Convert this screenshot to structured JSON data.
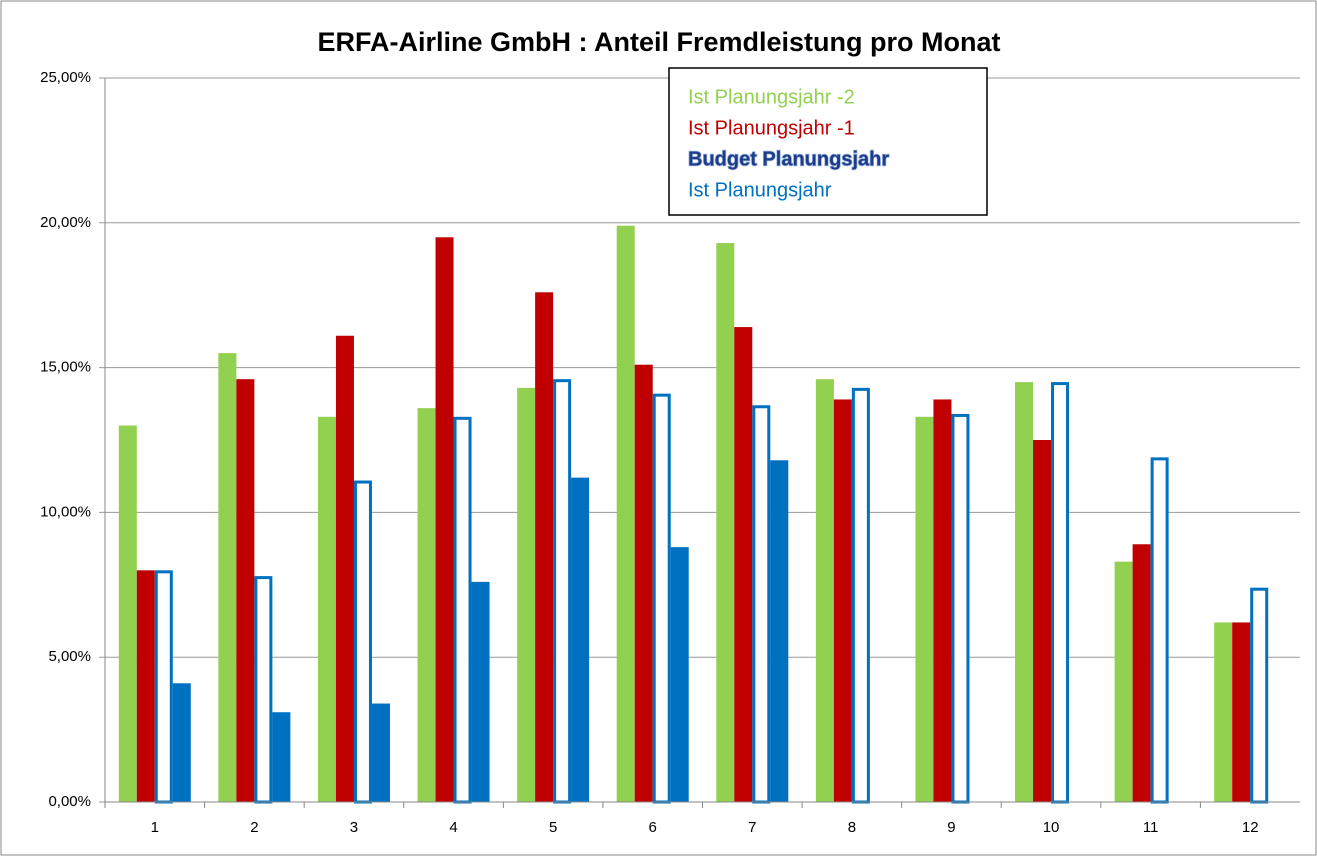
{
  "chart_data": {
    "type": "bar",
    "title": "ERFA-Airline GmbH : Anteil Fremdleistung  pro Monat",
    "categories": [
      "1",
      "2",
      "3",
      "4",
      "5",
      "6",
      "7",
      "8",
      "9",
      "10",
      "11",
      "12"
    ],
    "series": [
      {
        "name": "Ist Planungsjahr -2",
        "color": "#92d050",
        "outline": false,
        "values": [
          13.0,
          15.5,
          13.3,
          13.6,
          14.3,
          19.9,
          19.3,
          14.6,
          13.3,
          14.5,
          8.3,
          6.2
        ]
      },
      {
        "name": "Ist Planungsjahr -1",
        "color": "#c00000",
        "outline": false,
        "values": [
          8.0,
          14.6,
          16.1,
          19.5,
          17.6,
          15.1,
          16.4,
          13.9,
          13.9,
          12.5,
          8.9,
          6.2
        ]
      },
      {
        "name": "Budget Planungsjahr",
        "color": "#0070c0",
        "outline": true,
        "values": [
          8.0,
          7.8,
          11.1,
          13.3,
          14.6,
          14.1,
          13.7,
          14.3,
          13.4,
          14.5,
          11.9,
          7.4
        ]
      },
      {
        "name": "Ist Planungsjahr",
        "color": "#0070c0",
        "outline": false,
        "values": [
          4.1,
          3.1,
          3.4,
          7.6,
          11.2,
          8.8,
          11.8,
          null,
          null,
          null,
          null,
          null
        ]
      }
    ],
    "ylim": [
      0,
      25
    ],
    "yticks": [
      {
        "value": 0,
        "label": "0,00%"
      },
      {
        "value": 5,
        "label": "5,00%"
      },
      {
        "value": 10,
        "label": "10,00%"
      },
      {
        "value": 15,
        "label": "15,00%"
      },
      {
        "value": 20,
        "label": "20,00%"
      },
      {
        "value": 25,
        "label": "25,00%"
      }
    ],
    "grid": true,
    "legend": "top"
  }
}
